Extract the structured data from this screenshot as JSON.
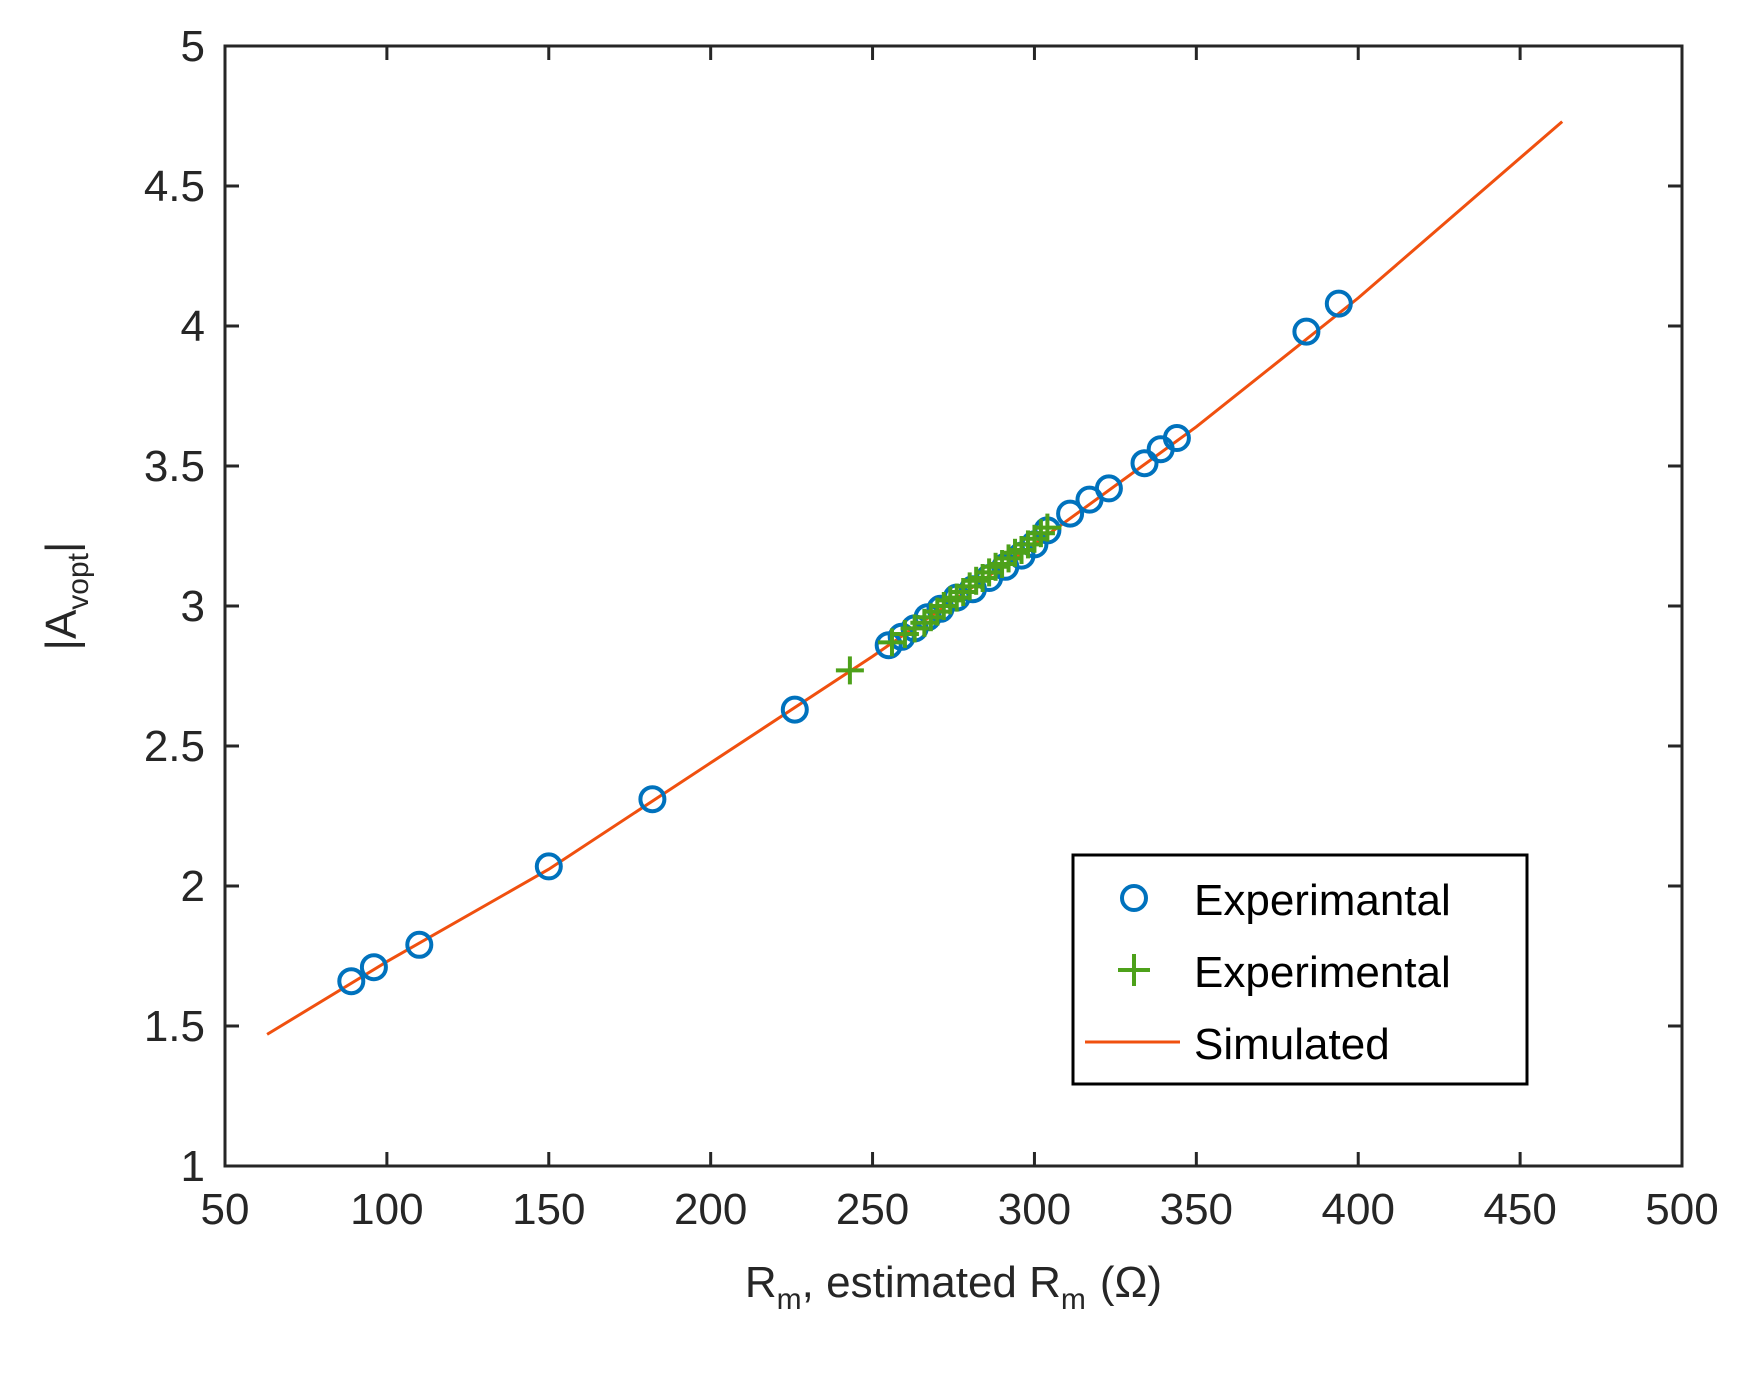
{
  "chart_data": {
    "type": "scatter",
    "title": "",
    "xlabel": {
      "main1": "R",
      "sub1": "m",
      "mid": ", estimated R",
      "sub2": "m",
      "unit": "(Ω)"
    },
    "ylabel": {
      "main": "|A",
      "sub": "vopt",
      "end": "|"
    },
    "xlim": [
      50,
      500
    ],
    "ylim": [
      1,
      5
    ],
    "xticks": [
      50,
      100,
      150,
      200,
      250,
      300,
      350,
      400,
      450,
      500
    ],
    "xtick_labels": [
      "50",
      "100",
      "150",
      "200",
      "250",
      "300",
      "350",
      "400",
      "450",
      "500"
    ],
    "yticks": [
      1,
      1.5,
      2,
      2.5,
      3,
      3.5,
      4,
      4.5,
      5
    ],
    "ytick_labels": [
      "1",
      "1.5",
      "2",
      "2.5",
      "3",
      "3.5",
      "4",
      "4.5",
      "5"
    ],
    "grid": false,
    "legend_position": "bottom-right",
    "series": [
      {
        "name": "Experimantal",
        "marker": "circle",
        "color": "#0072BD",
        "x": [
          89,
          96,
          110,
          150,
          182,
          226,
          255,
          259,
          263,
          267,
          271,
          276,
          281,
          286,
          291,
          296,
          300,
          304,
          311,
          317,
          323,
          334,
          339,
          344,
          384,
          394
        ],
        "y": [
          1.66,
          1.71,
          1.79,
          2.07,
          2.31,
          2.63,
          2.86,
          2.89,
          2.92,
          2.96,
          2.99,
          3.03,
          3.06,
          3.1,
          3.14,
          3.18,
          3.22,
          3.27,
          3.33,
          3.38,
          3.42,
          3.51,
          3.56,
          3.6,
          3.98,
          4.08
        ]
      },
      {
        "name": "Experimental",
        "marker": "plus",
        "color": "#4DA11A",
        "x": [
          243,
          256,
          260,
          263,
          266,
          268,
          270,
          272,
          274,
          276,
          278,
          280,
          282,
          284,
          286,
          288,
          290,
          292,
          294,
          296,
          298,
          300,
          302,
          304
        ],
        "y": [
          2.77,
          2.87,
          2.9,
          2.92,
          2.94,
          2.96,
          2.98,
          3.0,
          3.02,
          3.03,
          3.05,
          3.07,
          3.09,
          3.1,
          3.12,
          3.14,
          3.15,
          3.17,
          3.19,
          3.2,
          3.22,
          3.24,
          3.26,
          3.28
        ]
      },
      {
        "name": "Simulated",
        "marker": "line",
        "color": "#F0500F",
        "x": [
          63,
          100,
          150,
          200,
          250,
          300,
          350,
          400,
          463
        ],
        "y": [
          1.47,
          1.73,
          2.06,
          2.44,
          2.82,
          3.22,
          3.64,
          4.1,
          4.73
        ]
      }
    ]
  }
}
